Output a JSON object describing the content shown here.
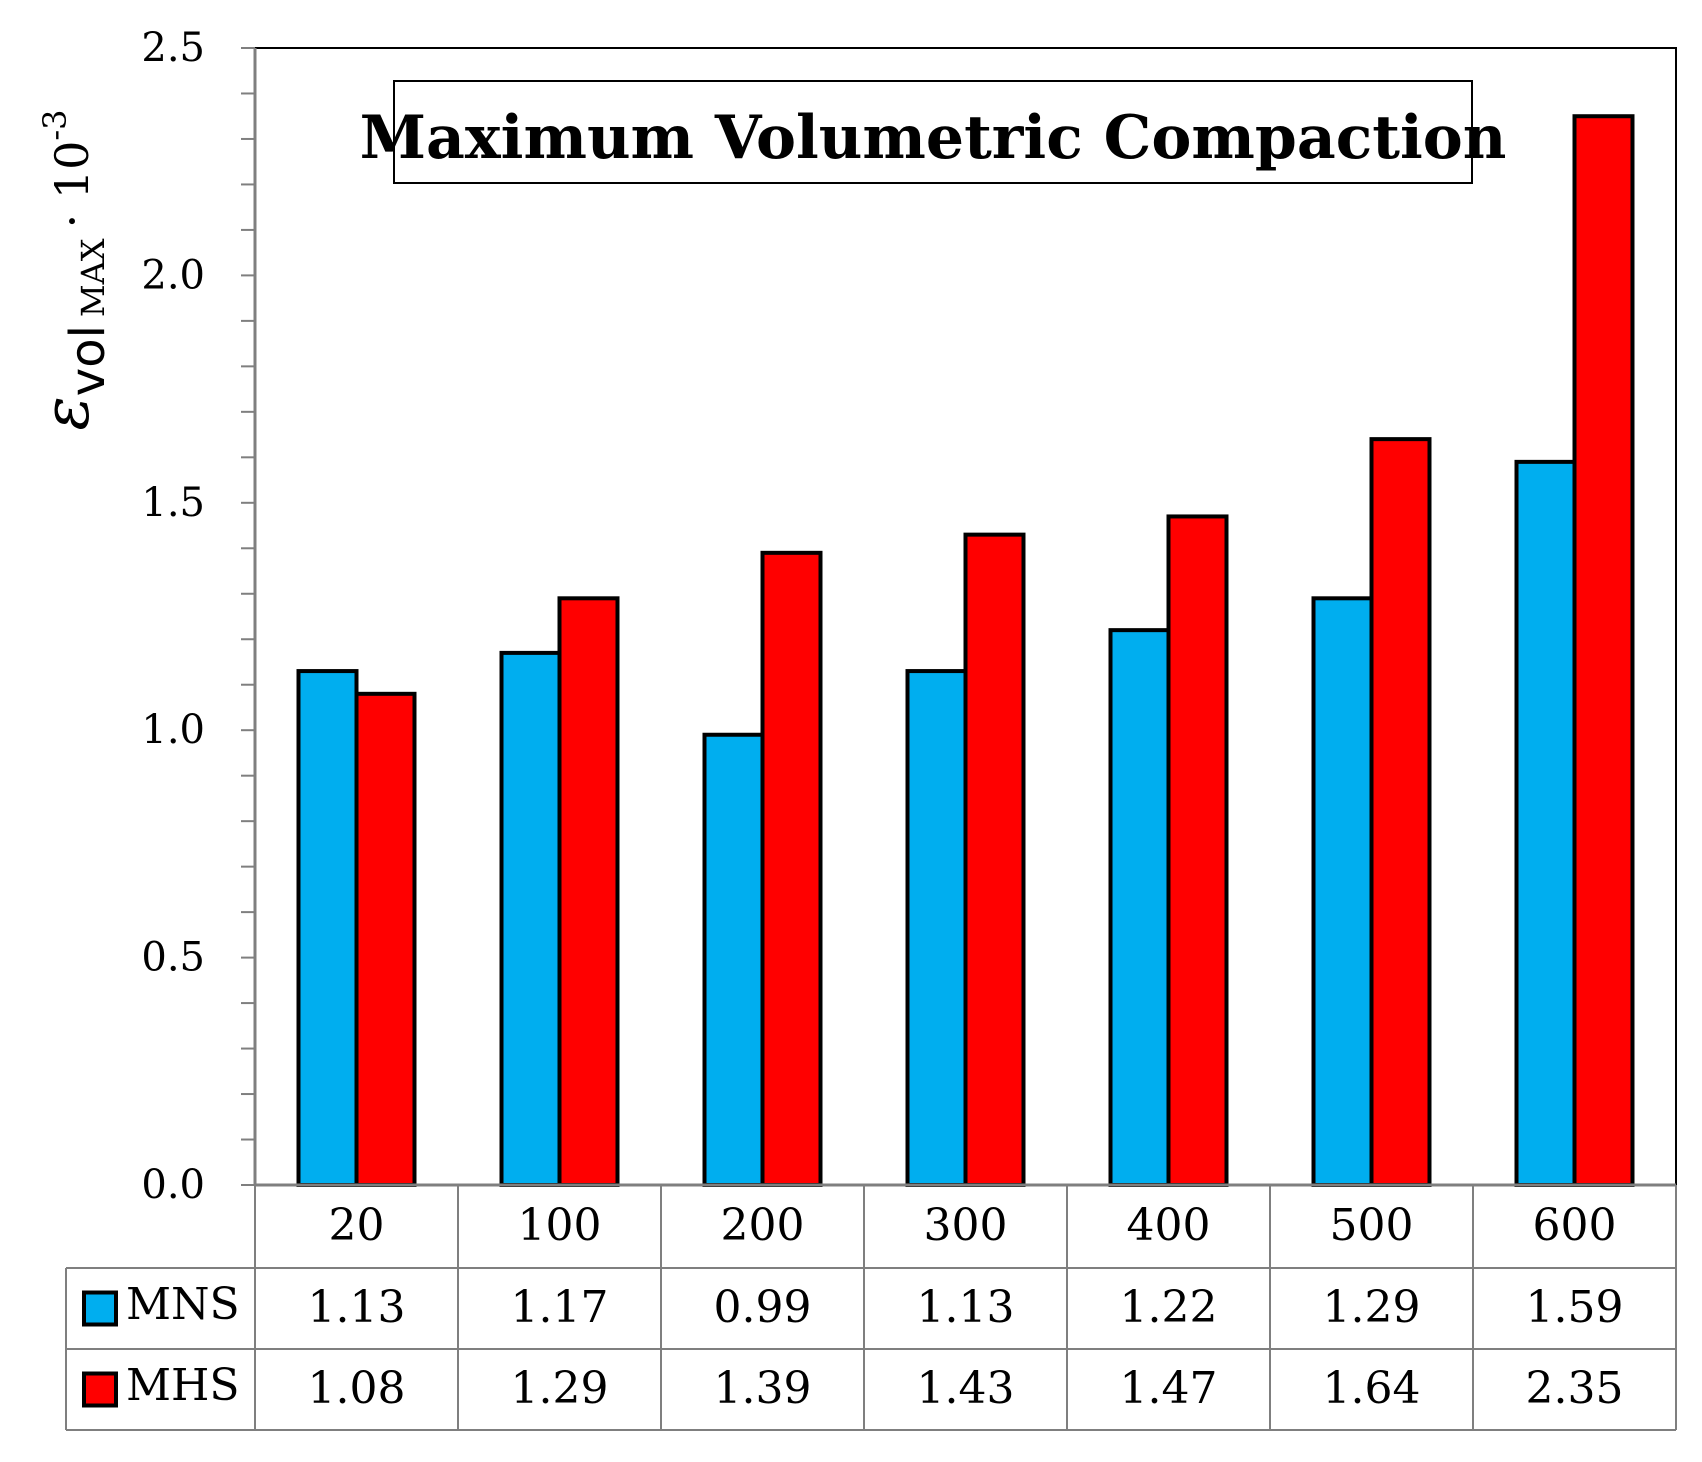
{
  "chart_data": {
    "type": "bar",
    "title": "Maximum Volumetric Compaction",
    "ylabel": {
      "symbol": "ε",
      "subscript_main": "vol",
      "subscript_small": "MAX",
      "multiplier": "· 10",
      "exponent": "-3"
    },
    "xlabel": "",
    "ylim": [
      0,
      2.5
    ],
    "yticks": [
      "0.0",
      "0.5",
      "1.0",
      "1.5",
      "2.0",
      "2.5"
    ],
    "ytick_values": [
      0,
      0.5,
      1.0,
      1.5,
      2.0,
      2.5
    ],
    "minor_tick_step": 0.1,
    "categories": [
      "20",
      "100",
      "200",
      "300",
      "400",
      "500",
      "600"
    ],
    "series": [
      {
        "name": "MNS",
        "color": "#00AEEF",
        "values": [
          1.13,
          1.17,
          0.99,
          1.13,
          1.22,
          1.29,
          1.59
        ],
        "labels": [
          "1.13",
          "1.17",
          "0.99",
          "1.13",
          "1.22",
          "1.29",
          "1.59"
        ]
      },
      {
        "name": "MHS",
        "color": "#FF0000",
        "values": [
          1.08,
          1.29,
          1.39,
          1.43,
          1.47,
          1.64,
          2.35
        ],
        "labels": [
          "1.08",
          "1.29",
          "1.39",
          "1.43",
          "1.47",
          "1.64",
          "2.35"
        ]
      }
    ],
    "grid": false,
    "legend": "data-table-below"
  }
}
